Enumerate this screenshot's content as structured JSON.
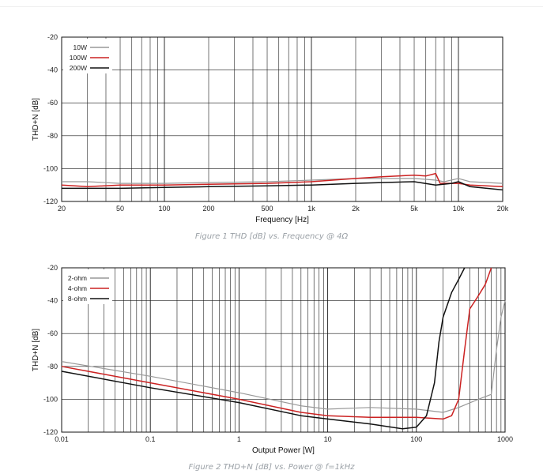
{
  "captions": {
    "fig1": "Figure 1 THD [dB] vs. Frequency @ 4Ω",
    "fig2": "Figure 2 THD+N [dB] vs. Power @ f=1kHz"
  },
  "chart_data": [
    {
      "type": "line",
      "title": "",
      "xlabel": "Frequency [Hz]",
      "ylabel": "THD+N [dB]",
      "xscale": "log",
      "xlim": [
        20,
        20000
      ],
      "ylim": [
        -120,
        -20
      ],
      "grid": true,
      "legend_position": "top-left",
      "x_ticks": [
        {
          "v": 20,
          "label": "20"
        },
        {
          "v": 50,
          "label": "50"
        },
        {
          "v": 100,
          "label": "100"
        },
        {
          "v": 200,
          "label": "200"
        },
        {
          "v": 500,
          "label": "500"
        },
        {
          "v": 1000,
          "label": "1k"
        },
        {
          "v": 2000,
          "label": "2k"
        },
        {
          "v": 5000,
          "label": "5k"
        },
        {
          "v": 10000,
          "label": "10k"
        },
        {
          "v": 20000,
          "label": "20k"
        }
      ],
      "y_ticks": [
        {
          "v": -20,
          "label": "-20"
        },
        {
          "v": -40,
          "label": "-40"
        },
        {
          "v": -60,
          "label": "-60"
        },
        {
          "v": -80,
          "label": "-80"
        },
        {
          "v": -100,
          "label": "-100"
        },
        {
          "v": -120,
          "label": "-120"
        }
      ],
      "series": [
        {
          "name": "10W",
          "color": "#999999",
          "points": [
            [
              20,
              -108
            ],
            [
              30,
              -108
            ],
            [
              50,
              -109
            ],
            [
              100,
              -109
            ],
            [
              200,
              -108.5
            ],
            [
              500,
              -108
            ],
            [
              1000,
              -107
            ],
            [
              2000,
              -106
            ],
            [
              3000,
              -106
            ],
            [
              5000,
              -106
            ],
            [
              7000,
              -107
            ],
            [
              8000,
              -108
            ],
            [
              10000,
              -106
            ],
            [
              12000,
              -108
            ],
            [
              20000,
              -109
            ]
          ]
        },
        {
          "name": "100W",
          "color": "#cc2222",
          "points": [
            [
              20,
              -110
            ],
            [
              30,
              -111
            ],
            [
              50,
              -110
            ],
            [
              100,
              -110
            ],
            [
              200,
              -109.5
            ],
            [
              500,
              -109
            ],
            [
              1000,
              -108
            ],
            [
              2000,
              -106
            ],
            [
              3000,
              -105
            ],
            [
              5000,
              -104
            ],
            [
              6000,
              -104.5
            ],
            [
              7000,
              -103
            ],
            [
              7500,
              -109
            ],
            [
              10000,
              -109
            ],
            [
              12000,
              -110
            ],
            [
              20000,
              -111
            ]
          ]
        },
        {
          "name": "200W",
          "color": "#111111",
          "points": [
            [
              20,
              -112
            ],
            [
              30,
              -112
            ],
            [
              50,
              -112
            ],
            [
              100,
              -111.5
            ],
            [
              200,
              -111
            ],
            [
              500,
              -110.5
            ],
            [
              1000,
              -110
            ],
            [
              2000,
              -109
            ],
            [
              3000,
              -108.5
            ],
            [
              5000,
              -108
            ],
            [
              7000,
              -110
            ],
            [
              9000,
              -109
            ],
            [
              10000,
              -108
            ],
            [
              12000,
              -111
            ],
            [
              20000,
              -113
            ]
          ]
        }
      ]
    },
    {
      "type": "line",
      "title": "",
      "xlabel": "Output Power [W]",
      "ylabel": "THD+N [dB]",
      "xscale": "log",
      "xlim": [
        0.01,
        1000
      ],
      "ylim": [
        -120,
        -20
      ],
      "grid": true,
      "legend_position": "top-left",
      "x_ticks": [
        {
          "v": 0.01,
          "label": "0.01"
        },
        {
          "v": 0.1,
          "label": "0.1"
        },
        {
          "v": 1,
          "label": "1"
        },
        {
          "v": 10,
          "label": "10"
        },
        {
          "v": 100,
          "label": "100"
        },
        {
          "v": 1000,
          "label": "1000"
        }
      ],
      "y_ticks": [
        {
          "v": -20,
          "label": "-20"
        },
        {
          "v": -40,
          "label": "-40"
        },
        {
          "v": -60,
          "label": "-60"
        },
        {
          "v": -80,
          "label": "-80"
        },
        {
          "v": -100,
          "label": "-100"
        },
        {
          "v": -120,
          "label": "-120"
        }
      ],
      "series": [
        {
          "name": "2-ohm",
          "color": "#999999",
          "points": [
            [
              0.01,
              -77
            ],
            [
              0.1,
              -86
            ],
            [
              1,
              -96
            ],
            [
              5,
              -104
            ],
            [
              10,
              -106
            ],
            [
              30,
              -105
            ],
            [
              100,
              -106
            ],
            [
              200,
              -108
            ],
            [
              300,
              -105
            ],
            [
              500,
              -100
            ],
            [
              700,
              -97
            ],
            [
              800,
              -70
            ],
            [
              900,
              -50
            ],
            [
              1000,
              -40
            ]
          ]
        },
        {
          "name": "4-ohm",
          "color": "#cc2222",
          "points": [
            [
              0.01,
              -80
            ],
            [
              0.1,
              -90
            ],
            [
              1,
              -100
            ],
            [
              5,
              -108
            ],
            [
              10,
              -110
            ],
            [
              30,
              -111
            ],
            [
              100,
              -111
            ],
            [
              200,
              -112
            ],
            [
              250,
              -110
            ],
            [
              300,
              -100
            ],
            [
              350,
              -70
            ],
            [
              400,
              -45
            ],
            [
              500,
              -37
            ],
            [
              600,
              -30
            ],
            [
              700,
              -20
            ]
          ]
        },
        {
          "name": "8-ohm",
          "color": "#111111",
          "points": [
            [
              0.01,
              -83
            ],
            [
              0.1,
              -93
            ],
            [
              1,
              -102
            ],
            [
              5,
              -110
            ],
            [
              10,
              -112
            ],
            [
              30,
              -115
            ],
            [
              70,
              -118
            ],
            [
              100,
              -117
            ],
            [
              130,
              -110
            ],
            [
              160,
              -90
            ],
            [
              180,
              -65
            ],
            [
              200,
              -50
            ],
            [
              250,
              -35
            ],
            [
              300,
              -27
            ],
            [
              350,
              -20
            ]
          ]
        }
      ]
    }
  ]
}
